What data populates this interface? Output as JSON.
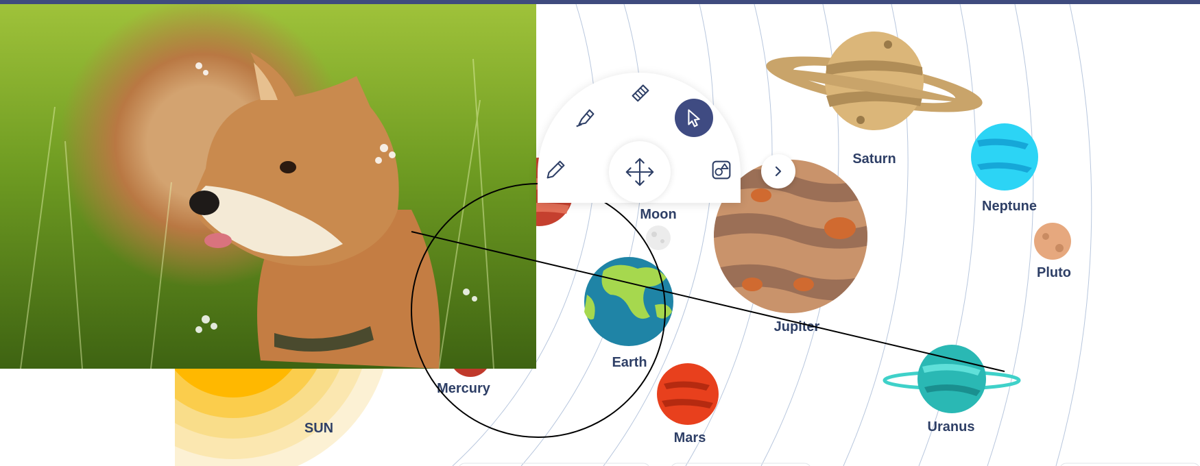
{
  "planets": {
    "sun": "SUN",
    "mercury": "Mercury",
    "earth": "Earth",
    "moon": "Moon",
    "mars": "Mars",
    "jupiter": "Jupiter",
    "saturn": "Saturn",
    "uranus": "Uranus",
    "neptune": "Neptune",
    "pluto": "Pluto"
  },
  "toolbar": {
    "tools": [
      {
        "name": "pencil",
        "icon": "pencil-icon",
        "active": false
      },
      {
        "name": "highlighter",
        "icon": "highlighter-icon",
        "active": false
      },
      {
        "name": "eraser",
        "icon": "eraser-icon",
        "active": false
      },
      {
        "name": "select",
        "icon": "cursor-icon",
        "active": true
      },
      {
        "name": "shapes",
        "icon": "shapes-icon",
        "active": false
      },
      {
        "name": "move",
        "icon": "move-icon",
        "active": false
      },
      {
        "name": "expand",
        "icon": "chevron-right-icon",
        "active": false
      }
    ]
  },
  "photo": {
    "subject": "shiba-inu-dog-in-grass"
  },
  "colors": {
    "header": "#3f4b7e",
    "label": "#2e3f66",
    "active_tool": "#3f4b82",
    "annotation_stroke": "#000000"
  }
}
